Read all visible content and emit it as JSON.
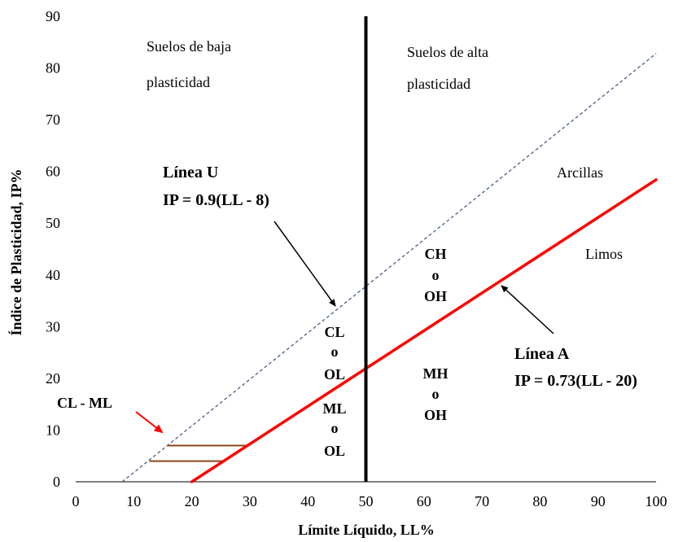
{
  "chart_data": {
    "type": "line",
    "xlabel": "Límite Líquido, LL%",
    "ylabel": "Índice de Plasticidad, IP%",
    "xlim": [
      0,
      100
    ],
    "ylim": [
      0,
      90
    ],
    "x_ticks": [
      "0",
      "10",
      "20",
      "30",
      "40",
      "50",
      "60",
      "70",
      "80",
      "90",
      "100"
    ],
    "y_ticks": [
      "0",
      "10",
      "20",
      "30",
      "40",
      "50",
      "60",
      "70",
      "80",
      "90"
    ],
    "grid": false,
    "colors": {
      "a_line": "#ff0000",
      "u_line": "#4a5f86",
      "cl_ml_band": "#8b4513",
      "divider": "#000000",
      "arrow_red": "#ff0000"
    },
    "series": [
      {
        "x": [
          8,
          100
        ],
        "y": [
          0,
          82.8
        ]
      },
      {
        "x": [
          20,
          100
        ],
        "y": [
          0,
          58.4
        ]
      }
    ],
    "divider": {
      "x": 50
    },
    "cl_ml_band": [
      {
        "x": [
          15.8,
          29.6
        ],
        "y": [
          7,
          7
        ]
      },
      {
        "x": [
          12.7,
          25.5
        ],
        "y": [
          4,
          4
        ]
      }
    ],
    "region_labels": {
      "low_line1": "Suelos de baja",
      "low_line2": "plasticidad",
      "high_line1": "Suelos de alta",
      "high_line2": "plasticidad",
      "arcillas": "Arcillas",
      "limos": "Limos"
    },
    "zones": {
      "cl": [
        "CL",
        "o",
        "OL"
      ],
      "ml": [
        "ML",
        "o",
        "OL"
      ],
      "ch": [
        "CH",
        "o",
        "OH"
      ],
      "mh": [
        "MH",
        "o",
        "OH"
      ],
      "cl_ml": "CL - ML"
    },
    "annotations": {
      "u_title": "Línea U",
      "u_eq": "IP = 0.9(LL - 8)",
      "a_title": "Línea A",
      "a_eq": "IP = 0.73(LL - 20)"
    }
  }
}
